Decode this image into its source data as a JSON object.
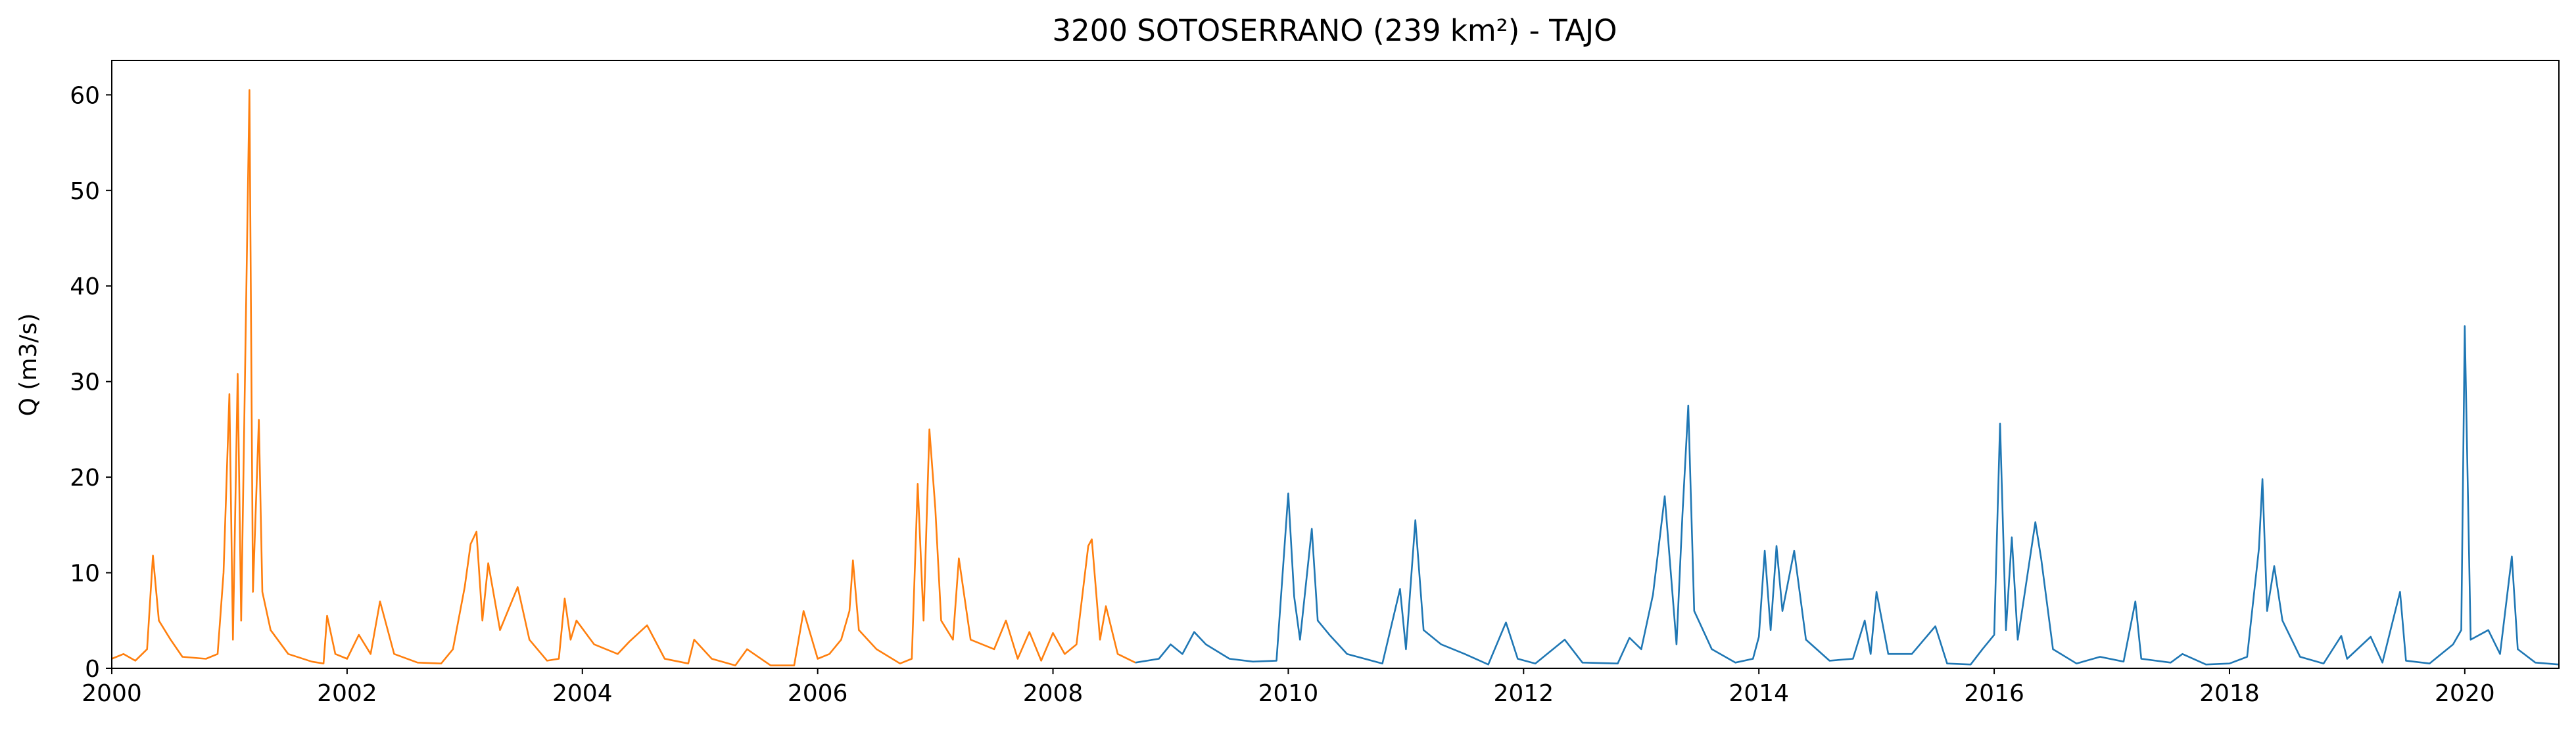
{
  "chart_data": {
    "type": "line",
    "title": "3200 SOTOSERRANO (239 km²) - TAJO",
    "y_label": "Q (m3/s)",
    "xlim": [
      2000,
      2020.8
    ],
    "xticks": [
      2000,
      2002,
      2004,
      2006,
      2008,
      2010,
      2012,
      2014,
      2016,
      2018,
      2020
    ],
    "ylim": [
      0,
      63.6
    ],
    "yticks": [
      0,
      10,
      20,
      30,
      40,
      50,
      60
    ],
    "grid": false,
    "series": [
      {
        "color": "#ff7f0e",
        "x": [
          2000.0,
          2000.1,
          2000.2,
          2000.3,
          2000.35,
          2000.4,
          2000.5,
          2000.6,
          2000.8,
          2000.9,
          2000.95,
          2001.0,
          2001.03,
          2001.07,
          2001.1,
          2001.13,
          2001.17,
          2001.2,
          2001.25,
          2001.28,
          2001.35,
          2001.5,
          2001.7,
          2001.8,
          2001.83,
          2001.9,
          2002.0,
          2002.1,
          2002.2,
          2002.28,
          2002.4,
          2002.6,
          2002.8,
          2002.9,
          2003.0,
          2003.05,
          2003.1,
          2003.15,
          2003.2,
          2003.3,
          2003.4,
          2003.45,
          2003.55,
          2003.7,
          2003.8,
          2003.85,
          2003.9,
          2003.95,
          2004.1,
          2004.3,
          2004.4,
          2004.55,
          2004.7,
          2004.9,
          2004.95,
          2005.1,
          2005.3,
          2005.4,
          2005.6,
          2005.8,
          2005.88,
          2006.0,
          2006.1,
          2006.2,
          2006.27,
          2006.3,
          2006.35,
          2006.5,
          2006.7,
          2006.8,
          2006.85,
          2006.9,
          2006.95,
          2007.0,
          2007.05,
          2007.15,
          2007.2,
          2007.3,
          2007.5,
          2007.6,
          2007.7,
          2007.8,
          2007.9,
          2008.0,
          2008.1,
          2008.2,
          2008.3,
          2008.33,
          2008.4,
          2008.45,
          2008.55,
          2008.7
        ],
        "values": [
          1.0,
          1.5,
          0.8,
          2,
          11.8,
          5,
          3,
          1.2,
          1.0,
          1.5,
          10,
          28.7,
          3,
          30.8,
          5,
          28.7,
          60.5,
          8,
          26,
          8,
          4,
          1.5,
          0.7,
          0.5,
          5.5,
          1.5,
          1.0,
          3.5,
          1.5,
          7,
          1.5,
          0.6,
          0.5,
          2,
          8.5,
          13,
          14.3,
          5,
          11,
          4,
          7,
          8.5,
          3,
          0.8,
          1,
          7.3,
          3,
          5,
          2.5,
          1.5,
          2.8,
          4.5,
          1,
          0.5,
          3,
          1,
          0.3,
          2,
          0.3,
          0.3,
          6,
          1,
          1.5,
          3,
          6,
          11.3,
          4,
          2,
          0.5,
          1,
          19.3,
          5,
          25,
          16.7,
          5,
          3,
          11.5,
          3,
          2,
          5,
          1,
          3.8,
          0.8,
          3.7,
          1.5,
          2.5,
          12.8,
          13.5,
          3,
          6.5,
          1.5,
          0.6
        ]
      },
      {
        "color": "#1f77b4",
        "x": [
          2008.7,
          2008.9,
          2009.0,
          2009.1,
          2009.2,
          2009.3,
          2009.5,
          2009.7,
          2009.9,
          2010.0,
          2010.05,
          2010.1,
          2010.2,
          2010.25,
          2010.35,
          2010.5,
          2010.8,
          2010.95,
          2011.0,
          2011.08,
          2011.15,
          2011.3,
          2011.5,
          2011.7,
          2011.85,
          2011.95,
          2012.1,
          2012.35,
          2012.5,
          2012.8,
          2012.9,
          2013.0,
          2013.1,
          2013.2,
          2013.3,
          2013.35,
          2013.4,
          2013.45,
          2013.6,
          2013.8,
          2013.95,
          2014.0,
          2014.05,
          2014.1,
          2014.15,
          2014.2,
          2014.3,
          2014.4,
          2014.6,
          2014.8,
          2014.9,
          2014.95,
          2015.0,
          2015.1,
          2015.3,
          2015.5,
          2015.6,
          2015.8,
          2015.9,
          2016.0,
          2016.05,
          2016.1,
          2016.15,
          2016.2,
          2016.35,
          2016.4,
          2016.5,
          2016.7,
          2016.9,
          2017.1,
          2017.2,
          2017.25,
          2017.5,
          2017.6,
          2017.8,
          2018.0,
          2018.15,
          2018.25,
          2018.28,
          2018.32,
          2018.38,
          2018.45,
          2018.6,
          2018.8,
          2018.95,
          2019.0,
          2019.2,
          2019.3,
          2019.45,
          2019.5,
          2019.7,
          2019.9,
          2019.97,
          2020.0,
          2020.05,
          2020.2,
          2020.3,
          2020.4,
          2020.45,
          2020.6,
          2020.8
        ],
        "values": [
          0.6,
          1,
          2.5,
          1.5,
          3.8,
          2.5,
          1,
          0.7,
          0.8,
          18.3,
          7.5,
          3,
          14.6,
          5,
          3.5,
          1.5,
          0.5,
          8.3,
          2,
          15.5,
          4,
          2.5,
          1.5,
          0.4,
          4.8,
          1,
          0.5,
          3,
          0.6,
          0.5,
          3.2,
          2,
          7.7,
          18,
          2.5,
          16,
          27.5,
          6,
          2,
          0.6,
          1,
          3.3,
          12.3,
          4,
          12.8,
          6,
          12.3,
          3,
          0.8,
          1,
          5,
          1.5,
          8,
          1.5,
          1.5,
          4.4,
          0.5,
          0.4,
          2,
          3.5,
          25.6,
          4,
          13.7,
          3,
          15.3,
          11.4,
          2,
          0.5,
          1.2,
          0.7,
          7,
          1,
          0.6,
          1.5,
          0.4,
          0.5,
          1.2,
          12.5,
          19.8,
          6,
          10.7,
          5,
          1.2,
          0.5,
          3.4,
          1,
          3.3,
          0.6,
          8,
          0.8,
          0.5,
          2.5,
          4,
          35.8,
          3,
          4,
          1.5,
          11.7,
          2,
          0.6,
          0.4
        ]
      }
    ]
  }
}
